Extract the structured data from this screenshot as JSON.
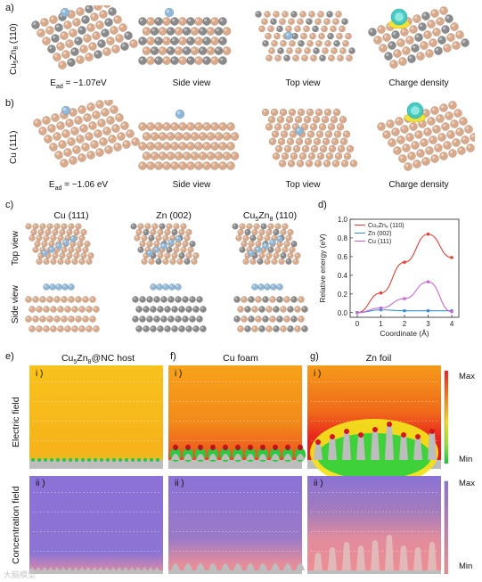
{
  "panels": {
    "a": {
      "label": "a)",
      "row_label_main": "Cu",
      "row_label_sub1": "5",
      "row_label_zn": "Zn",
      "row_label_sub2": "8",
      "row_label_face": " (110)",
      "ead_prefix": "E",
      "ead_sub": "ad",
      "ead_value": " = −1.07eV",
      "captions": [
        "Side view",
        "Top view",
        "Charge density"
      ]
    },
    "b": {
      "label": "b)",
      "row_label": "Cu (111)",
      "ead_prefix": "E",
      "ead_sub": "ad",
      "ead_value": " = −1.06 eV",
      "captions": [
        "Side view",
        "Top view",
        "Charge density"
      ]
    },
    "c": {
      "label": "c)",
      "columns": [
        "Cu (111)",
        "Zn (002)"
      ],
      "col3_main": "Cu",
      "col3_sub1": "5",
      "col3_zn": "Zn",
      "col3_sub2": "8",
      "col3_face": " (110)",
      "rows": [
        "Top view",
        "Side view"
      ]
    },
    "d": {
      "label": "d)"
    },
    "e": {
      "label": "e)",
      "title_main": "Cu",
      "title_sub1": "5",
      "title_zn": "Zn",
      "title_sub2": "8",
      "title_rest": "@NC host"
    },
    "f": {
      "label": "f)",
      "title": "Cu foam"
    },
    "g": {
      "label": "g)",
      "title": "Zn foil"
    },
    "roman": [
      "i )",
      "ii )"
    ],
    "field_labels": [
      "Electric field",
      "Concentration field"
    ],
    "scale_ef": {
      "max": "Max",
      "min": "Min"
    },
    "scale_cf": {
      "max": "Max",
      "min": "Min"
    },
    "watermark": "大脑模型"
  },
  "colors": {
    "cu_atom": "#d9a98a",
    "zn_atom": "#8a8a8a",
    "li_atom": "#8fb8d8",
    "field_orange": "#f7a21a",
    "field_red": "#e8241c",
    "field_green": "#25c93a",
    "conc_purple": "#8a72d6",
    "conc_pink": "#f08e8e",
    "substrate": "#bdbdbd",
    "series_cu5zn8": "#e0413a",
    "series_zn002": "#3a8fd6",
    "series_cu111": "#c66ad2"
  },
  "chart_data": {
    "type": "line",
    "xlabel": "Coordinate (Å)",
    "ylabel": "Relative energy (eV)",
    "xlim": [
      -0.3,
      4.3
    ],
    "ylim": [
      -0.05,
      1.0
    ],
    "xticks": [
      "0",
      "1",
      "2",
      "3",
      "4"
    ],
    "yticks": [
      "0.0",
      "0.2",
      "0.4",
      "0.6",
      "0.8",
      "1.0"
    ],
    "x": [
      0,
      1,
      2,
      3,
      4
    ],
    "series": [
      {
        "name": "Cu₅Zn₈ (110)",
        "values": [
          0.0,
          0.21,
          0.54,
          0.84,
          0.59
        ],
        "color": "#e0413a"
      },
      {
        "name": "Zn (002)",
        "values": [
          0.0,
          0.03,
          0.02,
          0.02,
          0.02
        ],
        "color": "#3a8fd6"
      },
      {
        "name": "Cu (111)",
        "values": [
          0.0,
          0.05,
          0.15,
          0.33,
          0.01
        ],
        "color": "#c66ad2"
      }
    ],
    "legend": "top-left",
    "grid": false
  }
}
